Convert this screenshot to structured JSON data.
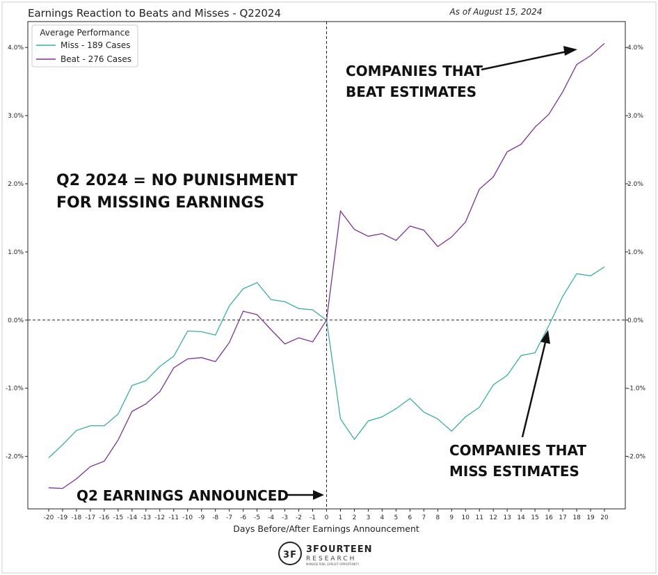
{
  "chart_data": {
    "type": "line",
    "title": "Earnings Reaction to Beats and Misses - Q22024",
    "as_of": "As of August 15, 2024",
    "xlabel": "Days Before/After Earnings Announcement",
    "ylabel": "",
    "x": [
      -20,
      -19,
      -18,
      -17,
      -16,
      -15,
      -14,
      -13,
      -12,
      -11,
      -10,
      -9,
      -8,
      -7,
      -6,
      -5,
      -4,
      -3,
      -2,
      -1,
      0,
      1,
      2,
      3,
      4,
      5,
      6,
      7,
      8,
      9,
      10,
      11,
      12,
      13,
      14,
      15,
      16,
      17,
      18,
      19,
      20
    ],
    "xlim": [
      -21.5,
      21.5
    ],
    "ylim": [
      -2.77,
      4.38
    ],
    "yticks": [
      -2.0,
      -1.0,
      0.0,
      1.0,
      2.0,
      3.0,
      4.0
    ],
    "ytick_labels": [
      "-2.0%",
      "-1.0%",
      "0.0%",
      "1.0%",
      "2.0%",
      "3.0%",
      "4.0%"
    ],
    "grid": false,
    "legend": {
      "title": "Average Performance",
      "placement": "upper-left"
    },
    "series": [
      {
        "name": "Miss - 189 Cases",
        "color": "#3aaea0",
        "values": [
          -2.02,
          -1.83,
          -1.62,
          -1.55,
          -1.55,
          -1.38,
          -0.96,
          -0.89,
          -0.68,
          -0.53,
          -0.16,
          -0.17,
          -0.22,
          0.21,
          0.46,
          0.55,
          0.3,
          0.27,
          0.17,
          0.15,
          0.0,
          -1.45,
          -1.75,
          -1.48,
          -1.42,
          -1.3,
          -1.15,
          -1.35,
          -1.45,
          -1.63,
          -1.42,
          -1.28,
          -0.95,
          -0.81,
          -0.52,
          -0.48,
          -0.08,
          0.35,
          0.68,
          0.65,
          0.78
        ]
      },
      {
        "name": "Beat - 276 Cases",
        "color": "#7b3294",
        "values": [
          -2.46,
          -2.47,
          -2.33,
          -2.15,
          -2.07,
          -1.76,
          -1.34,
          -1.23,
          -1.05,
          -0.7,
          -0.57,
          -0.55,
          -0.61,
          -0.33,
          0.13,
          0.08,
          -0.14,
          -0.35,
          -0.26,
          -0.32,
          0.0,
          1.6,
          1.33,
          1.23,
          1.27,
          1.17,
          1.38,
          1.32,
          1.08,
          1.22,
          1.44,
          1.92,
          2.1,
          2.47,
          2.58,
          2.83,
          3.02,
          3.35,
          3.75,
          3.88,
          4.06
        ]
      }
    ],
    "annotations": {
      "beat_line1": "COMPANIES THAT",
      "beat_line2": "BEAT ESTIMATES",
      "miss_line1": "COMPANIES THAT",
      "miss_line2": "MISS ESTIMATES",
      "q2_line1": "Q2 2024  =  NO PUNISHMENT",
      "q2_line2": "FOR MISSING EARNINGS",
      "announced": "Q2 EARNINGS ANNOUNCED"
    }
  },
  "logo": {
    "mark": "3F",
    "name": "3FOURTEEN",
    "sub": "RESEARCH",
    "tagline": "MANAGE RISK. EXPLOIT OPPORTUNITY"
  }
}
